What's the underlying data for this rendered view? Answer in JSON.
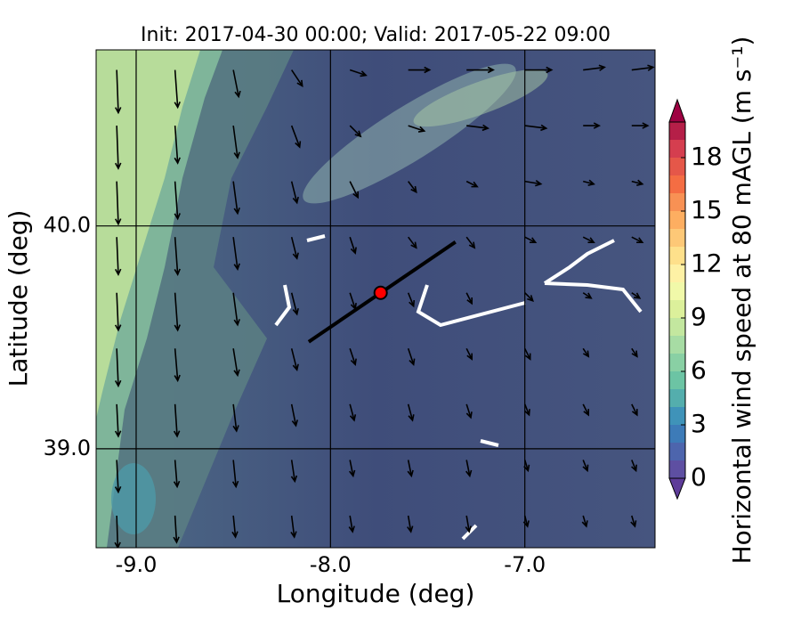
{
  "chart_data": {
    "type": "quiver-map",
    "title": "Init: 2017-04-30 00:00; Valid: 2017-05-22 09:00",
    "xlabel": "Longitude (deg)",
    "ylabel": "Latitude (deg)",
    "xlim": [
      -9.206,
      -6.33
    ],
    "ylim": [
      38.556,
      40.79
    ],
    "xticks": [
      {
        "value": -9,
        "label": "-9.0"
      },
      {
        "value": -8,
        "label": "-8.0"
      },
      {
        "value": -7,
        "label": "-7.0"
      }
    ],
    "yticks": [
      {
        "value": 39,
        "label": "39.0"
      },
      {
        "value": 40,
        "label": "40.0"
      }
    ],
    "grid": true,
    "transect": {
      "lon": [
        -8.112,
        -7.357
      ],
      "lat": [
        39.48,
        39.928
      ],
      "color": "#000000"
    },
    "site": {
      "lon": -7.742,
      "lat": 39.7,
      "color": "#ff0000"
    },
    "wind": {
      "lon": [
        -9.1,
        -8.8,
        -8.5,
        -8.2,
        -7.9,
        -7.6,
        -7.3,
        -7.0,
        -6.7,
        -6.45
      ],
      "lat": [
        40.7,
        40.45,
        40.2,
        39.95,
        39.7,
        39.45,
        39.2,
        38.95,
        38.7
      ],
      "u": [
        [
          0.3,
          0.5,
          1,
          2,
          3,
          4,
          5,
          5,
          4,
          4
        ],
        [
          0.3,
          0.5,
          0.8,
          1.5,
          2,
          3,
          4,
          4,
          3,
          3
        ],
        [
          0.3,
          0.5,
          0.8,
          1,
          1.5,
          1.5,
          2,
          3,
          2,
          2
        ],
        [
          0.3,
          0.5,
          0.8,
          1,
          1,
          1.5,
          1.5,
          2,
          2,
          2
        ],
        [
          0.3,
          0.5,
          0.8,
          1,
          1,
          1,
          1,
          1.5,
          1.5,
          1.5
        ],
        [
          0.3,
          0.5,
          0.8,
          1,
          1,
          1,
          1,
          1,
          1,
          1
        ],
        [
          0.3,
          0.4,
          0.6,
          0.8,
          0.8,
          0.8,
          0.8,
          0.8,
          1,
          1
        ],
        [
          0.3,
          0.4,
          0.5,
          0.6,
          0.6,
          0.6,
          0.6,
          0.6,
          0.8,
          0.8
        ],
        [
          0.2,
          0.3,
          0.4,
          0.5,
          0.5,
          0.5,
          0.5,
          0.5,
          0.6,
          0.6
        ]
      ],
      "v": [
        [
          -8,
          -7,
          -5,
          -3,
          -1,
          0,
          0,
          0,
          0.5,
          0.5
        ],
        [
          -8,
          -7,
          -6,
          -4,
          -2,
          -1,
          -0.5,
          -0.5,
          0,
          0
        ],
        [
          -8,
          -7,
          -6,
          -4,
          -3,
          -2,
          -1,
          -0.5,
          -0.5,
          -0.5
        ],
        [
          -7,
          -7,
          -6,
          -4,
          -3,
          -2,
          -2,
          -1,
          -1,
          -1
        ],
        [
          -7,
          -7,
          -6,
          -4,
          -3,
          -2.5,
          -2,
          -1.5,
          -1,
          -1
        ],
        [
          -7,
          -6,
          -5,
          -4,
          -3,
          -3,
          -2,
          -2,
          -1.5,
          -1.5
        ],
        [
          -6,
          -6,
          -5,
          -4,
          -3,
          -3,
          -2.5,
          -2,
          -2,
          -2
        ],
        [
          -6,
          -5,
          -5,
          -4,
          -3,
          -3,
          -3,
          -2,
          -2,
          -2
        ],
        [
          -6,
          -5,
          -4,
          -4,
          -3,
          -3,
          -3,
          -2,
          -2,
          -2
        ]
      ]
    },
    "colorbar": {
      "label": "Horizontal wind speed at 80 mAGL (m s⁻¹)",
      "levels": [
        0,
        1,
        2,
        3,
        4,
        5,
        6,
        7,
        8,
        9,
        10,
        11,
        12,
        13,
        14,
        15,
        16,
        17,
        18,
        19,
        20
      ],
      "colors": [
        "#5e4fa2",
        "#4d65ad",
        "#3d7bb8",
        "#3f93b9",
        "#54aead",
        "#6cc4a4",
        "#89d0a4",
        "#a7dca4",
        "#c3e79f",
        "#dcf09b",
        "#f1f9a9",
        "#fef1a5",
        "#fee08b",
        "#fdc877",
        "#fdae61",
        "#f89154",
        "#f46d43",
        "#e55749",
        "#d53e4f",
        "#b51f48"
      ],
      "under_color": "#5e3c99",
      "over_color": "#9e0142",
      "ticks": [
        0,
        3,
        6,
        9,
        12,
        15,
        18
      ]
    }
  }
}
